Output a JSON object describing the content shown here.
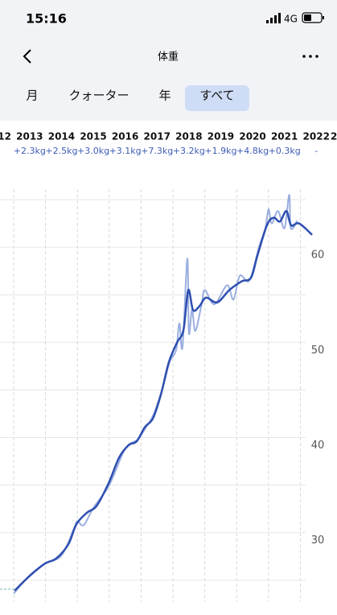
{
  "status_bar": {
    "time": "15:16",
    "network": "4G"
  },
  "header": {
    "title": "体重"
  },
  "tabs": [
    "月",
    "クォーター",
    "年",
    "すべて"
  ],
  "selected_tab": 3,
  "year_row": {
    "labels": [
      "12",
      "2013",
      "2014",
      "2015",
      "2016",
      "2017",
      "2018",
      "2019",
      "2020",
      "2021",
      "2022",
      "2"
    ],
    "changes": [
      "+2.3kg",
      "+2.5kg",
      "+3.0kg",
      "+3.1kg",
      "+7.3kg",
      "+3.2kg",
      "+1.9kg",
      "+4.8kg",
      "+0.3kg",
      "-"
    ]
  },
  "chart_data": {
    "type": "line",
    "xlim": [
      2012.57,
      2023.15
    ],
    "xticks": [
      2013,
      2014,
      2015,
      2016,
      2017,
      2018,
      2019,
      2020,
      2021,
      2022
    ],
    "ylim": [
      22.7,
      66.1
    ],
    "yticks": [
      30,
      40,
      50,
      60
    ],
    "minor_yticks": [
      25,
      35,
      45,
      55,
      65
    ],
    "series": [
      {
        "color": "#9aaee0",
        "x": [
          2013.0,
          2013.5,
          2014.0,
          2014.5,
          2014.9,
          2015.0,
          2015.2,
          2015.5,
          2016.0,
          2016.5,
          2016.9,
          2017.1,
          2017.4,
          2017.7,
          2017.9,
          2018.1,
          2018.2,
          2018.3,
          2018.45,
          2018.5,
          2018.6,
          2018.7,
          2018.9,
          2019.0,
          2019.3,
          2019.7,
          2019.9,
          2020.1,
          2020.4,
          2020.7,
          2020.9,
          2021.0,
          2021.1,
          2021.3,
          2021.5,
          2021.65,
          2021.7,
          2021.9
        ],
        "values": [
          23.6,
          25.5,
          26.8,
          27.6,
          30.5,
          31.2,
          30.8,
          32.6,
          35.0,
          38.8,
          39.8,
          40.8,
          42.5,
          45.5,
          48.0,
          49.2,
          52.0,
          49.5,
          58.8,
          51.0,
          53.5,
          51.2,
          54.0,
          55.5,
          54.0,
          56.0,
          54.5,
          57.0,
          56.5,
          60.0,
          62.0,
          64.0,
          62.5,
          63.8,
          62.0,
          65.5,
          62.0,
          62.8
        ]
      },
      {
        "color": "#2e4fb0",
        "x": [
          2013.03,
          2013.45,
          2013.96,
          2014.34,
          2014.72,
          2014.97,
          2015.3,
          2015.6,
          2015.98,
          2016.31,
          2016.61,
          2016.86,
          2017.12,
          2017.37,
          2017.62,
          2017.87,
          2018.13,
          2018.33,
          2018.48,
          2018.63,
          2018.83,
          2019.04,
          2019.39,
          2019.77,
          2020.15,
          2020.45,
          2020.65,
          2020.95,
          2021.16,
          2021.36,
          2021.56,
          2021.71,
          2021.96,
          2022.37
        ],
        "values": [
          23.9,
          25.3,
          26.7,
          27.3,
          28.8,
          30.9,
          32.1,
          32.8,
          35.2,
          37.9,
          39.2,
          39.6,
          41.1,
          42.0,
          44.5,
          47.9,
          50.0,
          51.3,
          55.5,
          53.4,
          53.8,
          54.7,
          54.2,
          55.5,
          56.4,
          56.8,
          59.1,
          62.3,
          63.1,
          62.7,
          63.8,
          62.3,
          62.5,
          61.3
        ]
      }
    ]
  }
}
